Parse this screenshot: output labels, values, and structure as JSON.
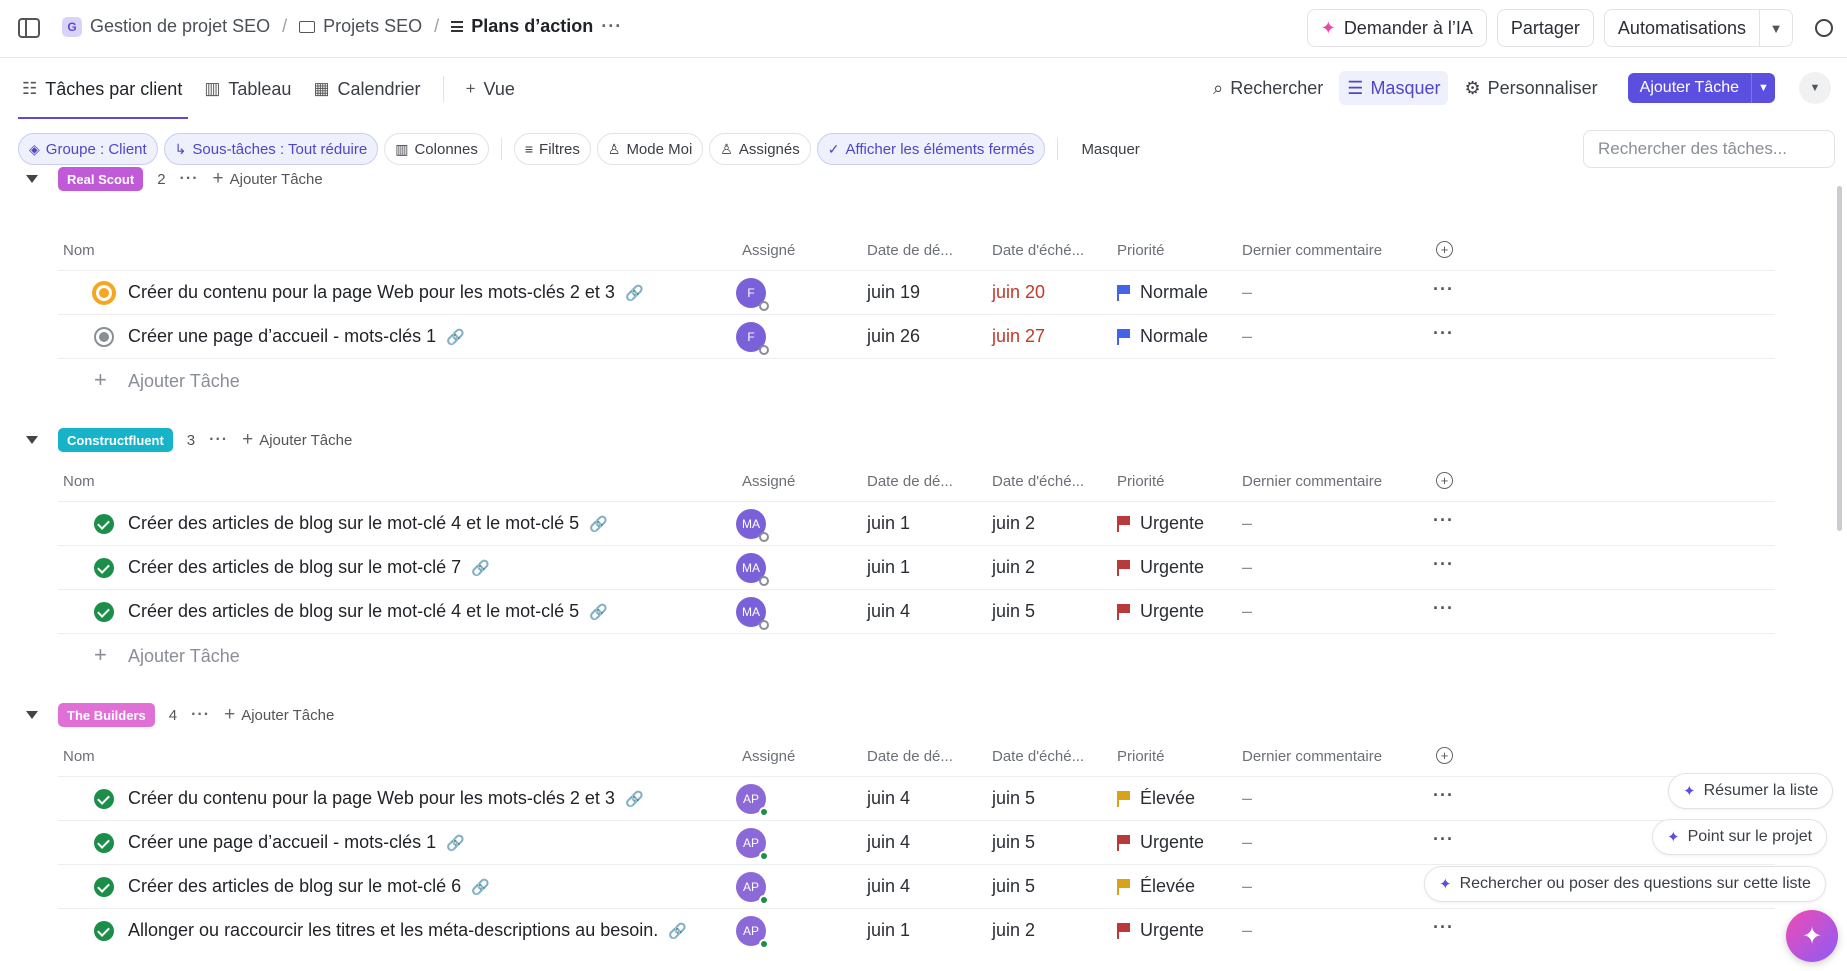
{
  "breadcrumb": {
    "workspace_initial": "G",
    "workspace": "Gestion de projet SEO",
    "folder": "Projets SEO",
    "list": "Plans d’action",
    "more": "···"
  },
  "topbar": {
    "ask_ai": "Demander à l’IA",
    "share": "Partager",
    "automations": "Automatisations"
  },
  "views": {
    "tabs": [
      "Tâches par client",
      "Tableau",
      "Calendrier"
    ],
    "add_view": "Vue",
    "search": "Rechercher",
    "hide": "Masquer",
    "customize": "Personnaliser",
    "add_task": "Ajouter Tâche"
  },
  "filters": {
    "group": "Groupe : Client",
    "subtasks": "Sous-tâches : Tout réduire",
    "columns": "Colonnes",
    "filters": "Filtres",
    "me_mode": "Mode Moi",
    "assignees": "Assignés",
    "show_closed": "Afficher les éléments fermés",
    "hide": "Masquer",
    "search_placeholder": "Rechercher des tâches..."
  },
  "columns": {
    "name": "Nom",
    "assignee": "Assigné",
    "start": "Date de dé...",
    "due": "Date d'éché...",
    "priority": "Priorité",
    "last_comment": "Dernier commentaire"
  },
  "add_task_label": "Ajouter Tâche",
  "groups": [
    {
      "name": "Real Scout",
      "color": "#c05ad6",
      "count": "2",
      "tasks": [
        {
          "status": "progress",
          "name": "Créer du contenu pour la page Web pour les mots-clés 2 et 3",
          "assignee": "F",
          "start": "juin 19",
          "due": "juin 20",
          "due_overdue": true,
          "priority": "Normale",
          "priority_color": "#4563e6",
          "comment": "–"
        },
        {
          "status": "todo",
          "name": "Créer une page d’accueil - mots-clés 1",
          "assignee": "F",
          "start": "juin 26",
          "due": "juin 27",
          "due_overdue": true,
          "priority": "Normale",
          "priority_color": "#4563e6",
          "comment": "–"
        }
      ]
    },
    {
      "name": "Constructfluent",
      "color": "#17b3c8",
      "count": "3",
      "tasks": [
        {
          "status": "done",
          "name": "Créer des articles de blog sur le mot-clé 4 et le mot-clé 5",
          "assignee": "MA",
          "start": "juin 1",
          "due": "juin 2",
          "priority": "Urgente",
          "priority_color": "#b83a3a",
          "comment": "–"
        },
        {
          "status": "done",
          "name": "Créer des articles de blog sur le mot-clé 7",
          "assignee": "MA",
          "start": "juin 1",
          "due": "juin 2",
          "priority": "Urgente",
          "priority_color": "#b83a3a",
          "comment": "–"
        },
        {
          "status": "done",
          "name": "Créer des articles de blog sur le mot-clé 4 et le mot-clé 5",
          "assignee": "MA",
          "start": "juin 4",
          "due": "juin 5",
          "priority": "Urgente",
          "priority_color": "#b83a3a",
          "comment": "–"
        }
      ]
    },
    {
      "name": "The Builders",
      "color": "#e070d6",
      "count": "4",
      "tasks": [
        {
          "status": "done",
          "name": "Créer du contenu pour la page Web pour les mots-clés 2 et 3",
          "assignee": "AP",
          "start": "juin 4",
          "due": "juin 5",
          "priority": "Élevée",
          "priority_color": "#d9a21a",
          "comment": "–"
        },
        {
          "status": "done",
          "name": "Créer une page d’accueil - mots-clés 1",
          "assignee": "AP",
          "start": "juin 4",
          "due": "juin 5",
          "priority": "Urgente",
          "priority_color": "#b83a3a",
          "comment": "–"
        },
        {
          "status": "done",
          "name": "Créer des articles de blog sur le mot-clé 6",
          "assignee": "AP",
          "start": "juin 4",
          "due": "juin 5",
          "priority": "Élevée",
          "priority_color": "#d9a21a",
          "comment": "–"
        },
        {
          "status": "done",
          "name": "Allonger ou raccourcir les titres et les méta-descriptions au besoin.",
          "assignee": "AP",
          "start": "juin 1",
          "due": "juin 2",
          "priority": "Urgente",
          "priority_color": "#b83a3a",
          "comment": "–"
        }
      ]
    }
  ],
  "ai": {
    "summarize": "Résumer la liste",
    "status": "Point sur le projet",
    "ask": "Rechercher ou poser des questions sur cette liste"
  }
}
